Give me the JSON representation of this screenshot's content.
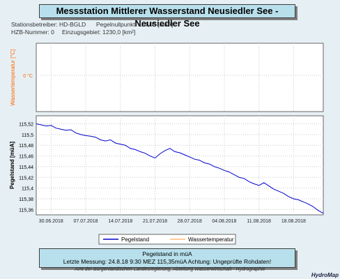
{
  "header": {
    "title": "Messstation Mittlerer Wasserstand Neusiedler See   -   Neusiedler See"
  },
  "station_info": {
    "line1_left": "Stationsbetreiber: HD-BGLD",
    "line1_right": "Pegelnullpunkt: 114,00 [müA]",
    "line2_left": "HZB-Nummer: 0",
    "line2_right": "Einzugsgebiet: 1230,0 [km²]"
  },
  "chart_data": {
    "type": "line",
    "upper_panel": {
      "ylabel": "Wassertemperatur [°C]",
      "ytick_labels": [
        "0 °C"
      ],
      "color": "#ff6600"
    },
    "lower_panel": {
      "ylabel": "Pegelstand [müA]",
      "ylim": [
        115.35,
        115.535
      ],
      "yticks": [
        115.36,
        115.38,
        115.4,
        115.42,
        115.44,
        115.46,
        115.48,
        115.5,
        115.52
      ],
      "ytick_labels": [
        "115,36",
        "115,38",
        "115,4",
        "115,42",
        "115,44",
        "115,46",
        "115,48",
        "115,5",
        "115,52"
      ]
    },
    "x_axis": {
      "xlim": [
        "2018-06-27",
        "2018-08-24"
      ],
      "ticks": [
        "2018-06-30",
        "2018-07-07",
        "2018-07-14",
        "2018-07-21",
        "2018-07-28",
        "2018-08-04",
        "2018-08-11",
        "2018-08-18"
      ],
      "tick_labels": [
        "30.06.2018",
        "07.07.2018",
        "14.07.2018",
        "21.07.2018",
        "28.07.2018",
        "04.08.2018",
        "11.08.2018",
        "18.08.2018"
      ]
    },
    "series": [
      {
        "name": "Pegelstand",
        "color": "#0000cc",
        "points": [
          [
            "2018-06-27",
            115.52
          ],
          [
            "2018-06-28",
            115.518
          ],
          [
            "2018-06-29",
            115.516
          ],
          [
            "2018-06-30",
            115.517
          ],
          [
            "2018-07-01",
            115.512
          ],
          [
            "2018-07-02",
            115.51
          ],
          [
            "2018-07-03",
            115.508
          ],
          [
            "2018-07-04",
            115.509
          ],
          [
            "2018-07-05",
            115.503
          ],
          [
            "2018-07-06",
            115.5
          ],
          [
            "2018-07-07",
            115.498
          ],
          [
            "2018-07-08",
            115.497
          ],
          [
            "2018-07-09",
            115.495
          ],
          [
            "2018-07-10",
            115.49
          ],
          [
            "2018-07-11",
            115.488
          ],
          [
            "2018-07-12",
            115.49
          ],
          [
            "2018-07-13",
            115.484
          ],
          [
            "2018-07-14",
            115.482
          ],
          [
            "2018-07-15",
            115.48
          ],
          [
            "2018-07-16",
            115.474
          ],
          [
            "2018-07-17",
            115.472
          ],
          [
            "2018-07-18",
            115.468
          ],
          [
            "2018-07-19",
            115.465
          ],
          [
            "2018-07-20",
            115.46
          ],
          [
            "2018-07-21",
            115.456
          ],
          [
            "2018-07-22",
            115.464
          ],
          [
            "2018-07-23",
            115.47
          ],
          [
            "2018-07-24",
            115.474
          ],
          [
            "2018-07-25",
            115.468
          ],
          [
            "2018-07-26",
            115.466
          ],
          [
            "2018-07-27",
            115.462
          ],
          [
            "2018-07-28",
            115.458
          ],
          [
            "2018-07-29",
            115.454
          ],
          [
            "2018-07-30",
            115.452
          ],
          [
            "2018-07-31",
            115.447
          ],
          [
            "2018-08-01",
            115.445
          ],
          [
            "2018-08-02",
            115.44
          ],
          [
            "2018-08-03",
            115.437
          ],
          [
            "2018-08-04",
            115.433
          ],
          [
            "2018-08-05",
            115.43
          ],
          [
            "2018-08-06",
            115.425
          ],
          [
            "2018-08-07",
            115.42
          ],
          [
            "2018-08-08",
            115.418
          ],
          [
            "2018-08-09",
            115.412
          ],
          [
            "2018-08-10",
            115.408
          ],
          [
            "2018-08-11",
            115.405
          ],
          [
            "2018-08-12",
            115.41
          ],
          [
            "2018-08-13",
            115.404
          ],
          [
            "2018-08-14",
            115.398
          ],
          [
            "2018-08-15",
            115.394
          ],
          [
            "2018-08-16",
            115.39
          ],
          [
            "2018-08-17",
            115.384
          ],
          [
            "2018-08-18",
            115.38
          ],
          [
            "2018-08-19",
            115.378
          ],
          [
            "2018-08-20",
            115.374
          ],
          [
            "2018-08-21",
            115.37
          ],
          [
            "2018-08-22",
            115.365
          ],
          [
            "2018-08-23",
            115.358
          ],
          [
            "2018-08-24",
            115.353
          ]
        ]
      },
      {
        "name": "Wassertemperatur",
        "color": "#ff9933",
        "points": []
      }
    ],
    "legend": {
      "placement": "bottom"
    }
  },
  "info_box": {
    "line1": "Pegelstand in müA",
    "line2": "Letzte Messung:  24.8.18 9:30 MEZ      115,35müA         Achtung: Ungeprüfte Rohdaten!"
  },
  "footer": "Amt der Burgenländischen Landesregierung, Abteilung Wasserwirtschaft - Hydrographie",
  "brand": "HydroMap"
}
